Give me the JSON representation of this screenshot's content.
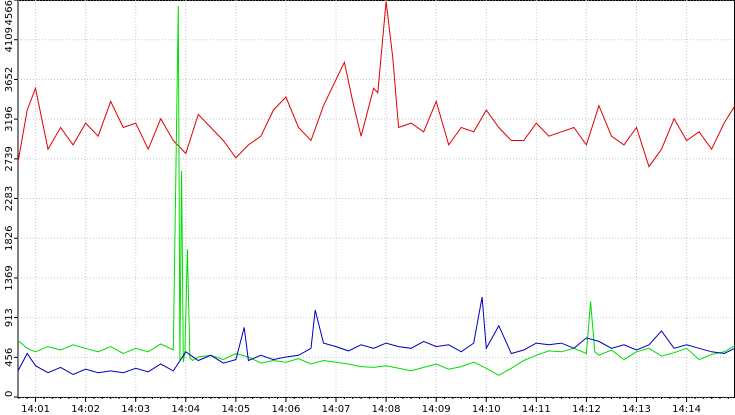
{
  "chart_data": {
    "type": "line",
    "title": "",
    "xlabel": "",
    "ylabel": "",
    "ylim": [
      0,
      4566
    ],
    "grid": true,
    "legend": "none",
    "x_tick_labels": [
      "14:01",
      "14:02",
      "14:03",
      "14:04",
      "14:05",
      "14:06",
      "14:07",
      "14:08",
      "14:09",
      "14:10",
      "14:11",
      "14:12",
      "14:13",
      "14:14"
    ],
    "y_ticks": [
      0,
      456,
      913,
      1369,
      1826,
      2283,
      2739,
      3196,
      3652,
      4109,
      4566
    ],
    "x_range": [
      "14:00:39",
      "14:14:58"
    ],
    "series": [
      {
        "color": "#e00000",
        "x": [
          "14:00:39",
          "14:00:50",
          "14:01:00",
          "14:01:15",
          "14:01:30",
          "14:01:45",
          "14:02:00",
          "14:02:15",
          "14:02:30",
          "14:02:45",
          "14:03:00",
          "14:03:15",
          "14:03:30",
          "14:03:45",
          "14:04:00",
          "14:04:15",
          "14:04:30",
          "14:04:45",
          "14:05:00",
          "14:05:15",
          "14:05:30",
          "14:05:45",
          "14:06:00",
          "14:06:15",
          "14:06:30",
          "14:06:45",
          "14:07:00",
          "14:07:10",
          "14:07:20",
          "14:07:30",
          "14:07:45",
          "14:07:50",
          "14:08:00",
          "14:08:08",
          "14:08:15",
          "14:08:30",
          "14:08:45",
          "14:09:00",
          "14:09:15",
          "14:09:30",
          "14:09:45",
          "14:10:00",
          "14:10:15",
          "14:10:30",
          "14:10:45",
          "14:11:00",
          "14:11:15",
          "14:11:30",
          "14:11:45",
          "14:12:00",
          "14:12:15",
          "14:12:30",
          "14:12:45",
          "14:13:00",
          "14:13:15",
          "14:13:30",
          "14:13:45",
          "14:14:00",
          "14:14:15",
          "14:14:30",
          "14:14:45",
          "14:14:58"
        ],
        "values": [
          2700,
          3300,
          3550,
          2850,
          3100,
          2900,
          3150,
          3000,
          3400,
          3100,
          3150,
          2850,
          3200,
          2950,
          2800,
          3250,
          3100,
          2950,
          2750,
          2900,
          3000,
          3300,
          3450,
          3100,
          2950,
          3350,
          3650,
          3850,
          3400,
          3000,
          3550,
          3500,
          4550,
          3900,
          3100,
          3150,
          3050,
          3400,
          2900,
          3100,
          3050,
          3300,
          3100,
          2950,
          2950,
          3150,
          3000,
          3050,
          3100,
          2900,
          3350,
          3000,
          2900,
          3100,
          2650,
          2850,
          3200,
          2950,
          3050,
          2850,
          3150,
          3350
        ]
      },
      {
        "color": "#00dd00",
        "x": [
          "14:00:39",
          "14:00:50",
          "14:01:00",
          "14:01:15",
          "14:01:30",
          "14:01:45",
          "14:02:00",
          "14:02:15",
          "14:02:30",
          "14:02:45",
          "14:03:00",
          "14:03:15",
          "14:03:30",
          "14:03:45",
          "14:03:51",
          "14:03:53",
          "14:03:55",
          "14:03:57",
          "14:03:59",
          "14:04:02",
          "14:04:05",
          "14:04:08",
          "14:04:15",
          "14:04:30",
          "14:04:45",
          "14:05:00",
          "14:05:15",
          "14:05:30",
          "14:05:45",
          "14:06:00",
          "14:06:15",
          "14:06:30",
          "14:06:45",
          "14:07:00",
          "14:07:15",
          "14:07:30",
          "14:07:45",
          "14:08:00",
          "14:08:15",
          "14:08:30",
          "14:08:45",
          "14:09:00",
          "14:09:15",
          "14:09:30",
          "14:09:45",
          "14:10:00",
          "14:10:15",
          "14:10:30",
          "14:10:45",
          "14:11:00",
          "14:11:15",
          "14:11:30",
          "14:11:45",
          "14:12:00",
          "14:12:05",
          "14:12:10",
          "14:12:15",
          "14:12:30",
          "14:12:45",
          "14:13:00",
          "14:13:15",
          "14:13:30",
          "14:13:45",
          "14:14:00",
          "14:14:15",
          "14:14:30",
          "14:14:45",
          "14:14:58"
        ],
        "values": [
          650,
          560,
          520,
          580,
          540,
          600,
          560,
          520,
          580,
          500,
          560,
          520,
          610,
          540,
          4500,
          420,
          2600,
          400,
          520,
          1700,
          450,
          420,
          460,
          480,
          430,
          500,
          460,
          390,
          420,
          400,
          440,
          380,
          420,
          400,
          380,
          350,
          340,
          360,
          330,
          300,
          340,
          380,
          320,
          350,
          400,
          330,
          250,
          330,
          420,
          480,
          530,
          520,
          560,
          500,
          1100,
          520,
          480,
          540,
          430,
          520,
          560,
          470,
          510,
          560,
          430,
          490,
          520,
          590
        ]
      },
      {
        "color": "#0000c0",
        "x": [
          "14:00:39",
          "14:00:50",
          "14:01:00",
          "14:01:15",
          "14:01:30",
          "14:01:45",
          "14:02:00",
          "14:02:15",
          "14:02:30",
          "14:02:45",
          "14:03:00",
          "14:03:15",
          "14:03:30",
          "14:03:45",
          "14:04:00",
          "14:04:15",
          "14:04:30",
          "14:04:45",
          "14:05:00",
          "14:05:10",
          "14:05:15",
          "14:05:30",
          "14:05:45",
          "14:06:00",
          "14:06:15",
          "14:06:30",
          "14:06:35",
          "14:06:45",
          "14:07:00",
          "14:07:15",
          "14:07:30",
          "14:07:45",
          "14:08:00",
          "14:08:15",
          "14:08:30",
          "14:08:45",
          "14:09:00",
          "14:09:15",
          "14:09:30",
          "14:09:45",
          "14:09:55",
          "14:10:00",
          "14:10:15",
          "14:10:30",
          "14:10:45",
          "14:11:00",
          "14:11:15",
          "14:11:30",
          "14:11:45",
          "14:12:00",
          "14:12:15",
          "14:12:30",
          "14:12:45",
          "14:13:00",
          "14:13:15",
          "14:13:30",
          "14:13:45",
          "14:14:00",
          "14:14:15",
          "14:14:30",
          "14:14:45",
          "14:14:58"
        ],
        "values": [
          300,
          500,
          360,
          280,
          340,
          260,
          320,
          280,
          300,
          280,
          330,
          290,
          380,
          300,
          520,
          420,
          480,
          390,
          430,
          800,
          420,
          480,
          430,
          460,
          480,
          560,
          1000,
          620,
          580,
          530,
          600,
          560,
          620,
          580,
          560,
          640,
          580,
          600,
          520,
          620,
          1150,
          560,
          820,
          500,
          540,
          620,
          600,
          620,
          560,
          680,
          640,
          560,
          600,
          540,
          600,
          760,
          560,
          600,
          560,
          520,
          500,
          560
        ]
      }
    ]
  }
}
